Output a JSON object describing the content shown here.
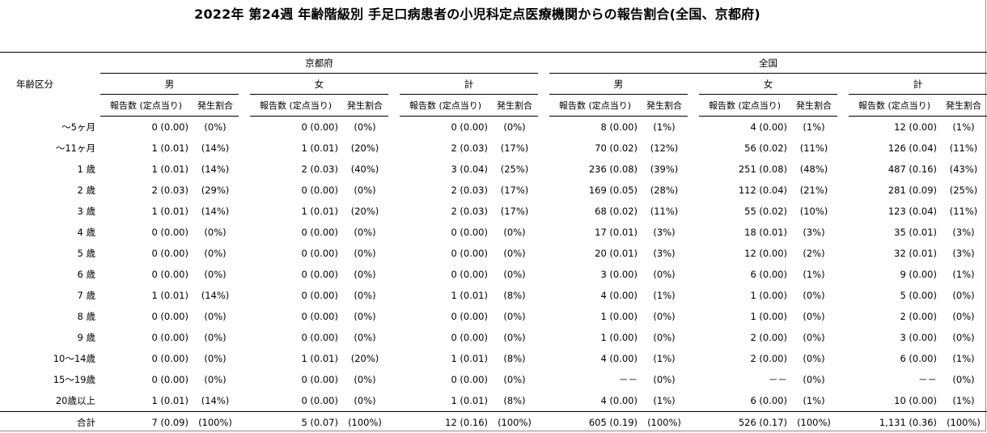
{
  "title": "2022年 第24週 年齢階級別 手足口病患者の小児科定点医療機関からの報告割合(全国、京都府)",
  "header": {
    "age_label": "年齢区分",
    "region_kyoto": "京都府",
    "region_national": "全国",
    "male": "男",
    "female": "女",
    "total": "計",
    "report_count": "報告数 (定点当り)",
    "ratio": "発生割合"
  },
  "rows": [
    {
      "age": "～5ヶ月",
      "k": [
        [
          "0 (0.00)",
          "(0%)"
        ],
        [
          "0 (0.00)",
          "(0%)"
        ],
        [
          "0 (0.00)",
          "(0%)"
        ]
      ],
      "n": [
        [
          "8 (0.00)",
          "(1%)"
        ],
        [
          "4 (0.00)",
          "(1%)"
        ],
        [
          "12 (0.00)",
          "(1%)"
        ]
      ]
    },
    {
      "age": "～11ヶ月",
      "k": [
        [
          "1 (0.01)",
          "(14%)"
        ],
        [
          "1 (0.01)",
          "(20%)"
        ],
        [
          "2 (0.03)",
          "(17%)"
        ]
      ],
      "n": [
        [
          "70 (0.02)",
          "(12%)"
        ],
        [
          "56 (0.02)",
          "(11%)"
        ],
        [
          "126 (0.04)",
          "(11%)"
        ]
      ]
    },
    {
      "age": "1 歳",
      "k": [
        [
          "1 (0.01)",
          "(14%)"
        ],
        [
          "2 (0.03)",
          "(40%)"
        ],
        [
          "3 (0.04)",
          "(25%)"
        ]
      ],
      "n": [
        [
          "236 (0.08)",
          "(39%)"
        ],
        [
          "251 (0.08)",
          "(48%)"
        ],
        [
          "487 (0.16)",
          "(43%)"
        ]
      ]
    },
    {
      "age": "2 歳",
      "k": [
        [
          "2 (0.03)",
          "(29%)"
        ],
        [
          "0 (0.00)",
          "(0%)"
        ],
        [
          "2 (0.03)",
          "(17%)"
        ]
      ],
      "n": [
        [
          "169 (0.05)",
          "(28%)"
        ],
        [
          "112 (0.04)",
          "(21%)"
        ],
        [
          "281 (0.09)",
          "(25%)"
        ]
      ]
    },
    {
      "age": "3 歳",
      "k": [
        [
          "1 (0.01)",
          "(14%)"
        ],
        [
          "1 (0.01)",
          "(20%)"
        ],
        [
          "2 (0.03)",
          "(17%)"
        ]
      ],
      "n": [
        [
          "68 (0.02)",
          "(11%)"
        ],
        [
          "55 (0.02)",
          "(10%)"
        ],
        [
          "123 (0.04)",
          "(11%)"
        ]
      ]
    },
    {
      "age": "4 歳",
      "k": [
        [
          "0 (0.00)",
          "(0%)"
        ],
        [
          "0 (0.00)",
          "(0%)"
        ],
        [
          "0 (0.00)",
          "(0%)"
        ]
      ],
      "n": [
        [
          "17 (0.01)",
          "(3%)"
        ],
        [
          "18 (0.01)",
          "(3%)"
        ],
        [
          "35 (0.01)",
          "(3%)"
        ]
      ]
    },
    {
      "age": "5 歳",
      "k": [
        [
          "0 (0.00)",
          "(0%)"
        ],
        [
          "0 (0.00)",
          "(0%)"
        ],
        [
          "0 (0.00)",
          "(0%)"
        ]
      ],
      "n": [
        [
          "20 (0.01)",
          "(3%)"
        ],
        [
          "12 (0.00)",
          "(2%)"
        ],
        [
          "32 (0.01)",
          "(3%)"
        ]
      ]
    },
    {
      "age": "6 歳",
      "k": [
        [
          "0 (0.00)",
          "(0%)"
        ],
        [
          "0 (0.00)",
          "(0%)"
        ],
        [
          "0 (0.00)",
          "(0%)"
        ]
      ],
      "n": [
        [
          "3 (0.00)",
          "(0%)"
        ],
        [
          "6 (0.00)",
          "(1%)"
        ],
        [
          "9 (0.00)",
          "(1%)"
        ]
      ]
    },
    {
      "age": "7 歳",
      "k": [
        [
          "1 (0.01)",
          "(14%)"
        ],
        [
          "0 (0.00)",
          "(0%)"
        ],
        [
          "1 (0.01)",
          "(8%)"
        ]
      ],
      "n": [
        [
          "4 (0.00)",
          "(1%)"
        ],
        [
          "1 (0.00)",
          "(0%)"
        ],
        [
          "5 (0.00)",
          "(0%)"
        ]
      ]
    },
    {
      "age": "8 歳",
      "k": [
        [
          "0 (0.00)",
          "(0%)"
        ],
        [
          "0 (0.00)",
          "(0%)"
        ],
        [
          "0 (0.00)",
          "(0%)"
        ]
      ],
      "n": [
        [
          "1 (0.00)",
          "(0%)"
        ],
        [
          "1 (0.00)",
          "(0%)"
        ],
        [
          "2 (0.00)",
          "(0%)"
        ]
      ]
    },
    {
      "age": "9 歳",
      "k": [
        [
          "0 (0.00)",
          "(0%)"
        ],
        [
          "0 (0.00)",
          "(0%)"
        ],
        [
          "0 (0.00)",
          "(0%)"
        ]
      ],
      "n": [
        [
          "1 (0.00)",
          "(0%)"
        ],
        [
          "2 (0.00)",
          "(0%)"
        ],
        [
          "3 (0.00)",
          "(0%)"
        ]
      ]
    },
    {
      "age": "10～14歳",
      "k": [
        [
          "0 (0.00)",
          "(0%)"
        ],
        [
          "1 (0.01)",
          "(20%)"
        ],
        [
          "1 (0.01)",
          "(8%)"
        ]
      ],
      "n": [
        [
          "4 (0.00)",
          "(1%)"
        ],
        [
          "2 (0.00)",
          "(0%)"
        ],
        [
          "6 (0.00)",
          "(1%)"
        ]
      ]
    },
    {
      "age": "15～19歳",
      "k": [
        [
          "0 (0.00)",
          "(0%)"
        ],
        [
          "0 (0.00)",
          "(0%)"
        ],
        [
          "0 (0.00)",
          "(0%)"
        ]
      ],
      "n": [
        [
          "－－",
          "(0%)"
        ],
        [
          "－－",
          "(0%)"
        ],
        [
          "－－",
          "(0%)"
        ]
      ]
    },
    {
      "age": "20歳以上",
      "k": [
        [
          "1 (0.01)",
          "(14%)"
        ],
        [
          "0 (0.00)",
          "(0%)"
        ],
        [
          "1 (0.01)",
          "(8%)"
        ]
      ],
      "n": [
        [
          "4 (0.00)",
          "(1%)"
        ],
        [
          "6 (0.00)",
          "(1%)"
        ],
        [
          "10 (0.00)",
          "(1%)"
        ]
      ]
    }
  ],
  "total_row": {
    "age": "合計",
    "k": [
      [
        "7 (0.09)",
        "(100%)"
      ],
      [
        "5 (0.07)",
        "(100%)"
      ],
      [
        "12 (0.16)",
        "(100%)"
      ]
    ],
    "n": [
      [
        "605 (0.19)",
        "(100%)"
      ],
      [
        "526 (0.17)",
        "(100%)"
      ],
      [
        "1,131 (0.36)",
        "(100%)"
      ]
    ]
  }
}
